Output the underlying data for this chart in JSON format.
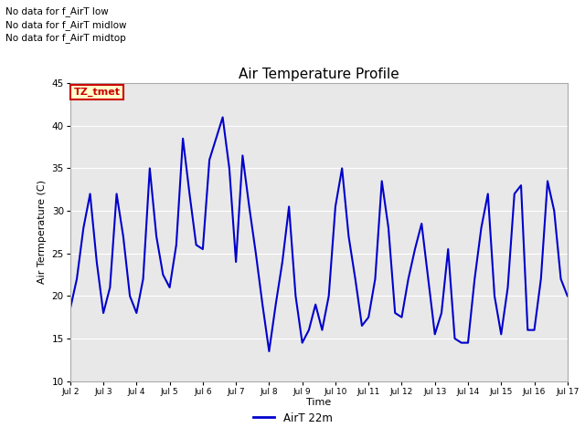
{
  "title": "Air Temperature Profile",
  "xlabel": "Time",
  "ylabel": "Air Termperature (C)",
  "line_color": "#0000cc",
  "line_width": 1.5,
  "background_color": "#ffffff",
  "plot_bg_color": "#e8e8e8",
  "ylim": [
    10,
    45
  ],
  "yticks": [
    10,
    15,
    20,
    25,
    30,
    35,
    40,
    45
  ],
  "legend_label": "AirT 22m",
  "legend_line_color": "#0000cc",
  "annotations_text": [
    "No data for f_AirT low",
    "No data for f_AirT midlow",
    "No data for f_AirT midtop"
  ],
  "tz_label": "TZ_tmet",
  "x_tick_labels": [
    "Jul 2",
    "Jul 3",
    "Jul 4",
    "Jul 5",
    "Jul 6",
    "Jul 7",
    "Jul 8",
    "Jul 9",
    "Jul 10",
    "Jul 11",
    "Jul 12",
    "Jul 13",
    "Jul 14",
    "Jul 15",
    "Jul 16",
    "Jul 17"
  ],
  "time_points": [
    2.0,
    2.2,
    2.4,
    2.6,
    2.8,
    3.0,
    3.2,
    3.4,
    3.6,
    3.8,
    4.0,
    4.2,
    4.4,
    4.6,
    4.8,
    5.0,
    5.2,
    5.4,
    5.6,
    5.8,
    6.0,
    6.2,
    6.4,
    6.6,
    6.8,
    7.0,
    7.2,
    7.4,
    7.6,
    7.8,
    8.0,
    8.2,
    8.4,
    8.6,
    8.8,
    9.0,
    9.2,
    9.4,
    9.6,
    9.8,
    10.0,
    10.2,
    10.4,
    10.6,
    10.8,
    11.0,
    11.2,
    11.4,
    11.6,
    11.8,
    12.0,
    12.2,
    12.4,
    12.6,
    12.8,
    13.0,
    13.2,
    13.4,
    13.6,
    13.8,
    14.0,
    14.2,
    14.4,
    14.6,
    14.8,
    15.0,
    15.2,
    15.4,
    15.6,
    15.8,
    16.0,
    16.2,
    16.4,
    16.6,
    16.8,
    17.0
  ],
  "temp_values": [
    18.5,
    22.0,
    28.0,
    32.0,
    24.0,
    18.0,
    21.0,
    32.0,
    27.0,
    20.0,
    18.0,
    22.0,
    35.0,
    27.0,
    22.5,
    21.0,
    26.0,
    38.5,
    32.0,
    26.0,
    25.5,
    36.0,
    38.5,
    41.0,
    35.0,
    24.0,
    36.5,
    30.5,
    25.0,
    19.0,
    13.5,
    19.0,
    24.0,
    30.5,
    20.0,
    14.5,
    16.0,
    19.0,
    16.0,
    20.0,
    30.5,
    35.0,
    27.0,
    22.0,
    16.5,
    17.5,
    22.0,
    33.5,
    28.0,
    18.0,
    17.5,
    22.0,
    25.5,
    28.5,
    22.0,
    15.5,
    18.0,
    25.5,
    15.0,
    14.5,
    14.5,
    22.0,
    28.0,
    32.0,
    20.0,
    15.5,
    21.0,
    32.0,
    33.0,
    16.0,
    16.0,
    22.0,
    33.5,
    30.0,
    22.0,
    20.0
  ]
}
